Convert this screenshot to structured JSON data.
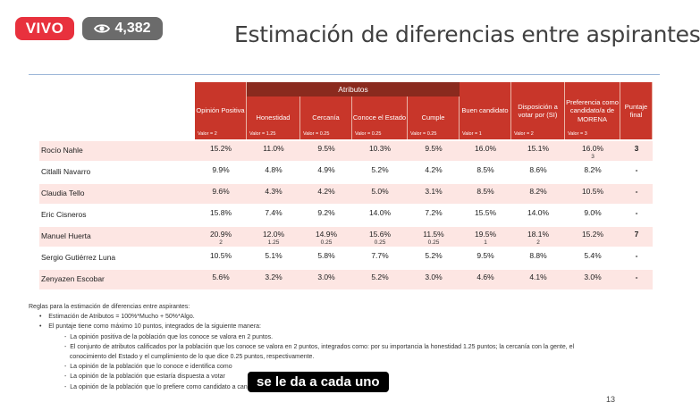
{
  "live": {
    "label": "VIVO"
  },
  "viewers": {
    "count": "4,382",
    "icon": "eye-icon"
  },
  "slide": {
    "title": "Estimación de diferencias entre aspirantes",
    "page_number": "13"
  },
  "table": {
    "columns": [
      {
        "label": "Opinión Positiva",
        "valor": "Valor = 2"
      },
      {
        "label": "Honestidad",
        "valor": "Valor = 1.25"
      },
      {
        "label": "Cercanía",
        "valor": "Valor = 0.25"
      },
      {
        "label": "Conoce el Estado",
        "valor": "Valor = 0.25"
      },
      {
        "label": "Cumple",
        "valor": "Valor = 0.25"
      },
      {
        "label": "Buen candidato",
        "valor": "Valor = 1"
      },
      {
        "label": "Disposición a votar por (SI)",
        "valor": "Valor = 2"
      },
      {
        "label": "Preferencia como candidato/a de MORENA",
        "valor": "Valor = 3"
      },
      {
        "label": "Puntaje final",
        "valor": ""
      }
    ],
    "group_header": "Atributos",
    "rows": [
      {
        "name": "Rocío Nahle",
        "values": [
          "15.2%",
          "11.0%",
          "9.5%",
          "10.3%",
          "9.5%",
          "16.0%",
          "15.1%",
          "16.0%"
        ],
        "subs": [
          "",
          "",
          "",
          "",
          "",
          "",
          "",
          "3"
        ],
        "final": "3"
      },
      {
        "name": "Citlalli Navarro",
        "values": [
          "9.9%",
          "4.8%",
          "4.9%",
          "5.2%",
          "4.2%",
          "8.5%",
          "8.6%",
          "8.2%"
        ],
        "subs": [
          "",
          "",
          "",
          "",
          "",
          "",
          "",
          ""
        ],
        "final": "-"
      },
      {
        "name": "Claudia Tello",
        "values": [
          "9.6%",
          "4.3%",
          "4.2%",
          "5.0%",
          "3.1%",
          "8.5%",
          "8.2%",
          "10.5%"
        ],
        "subs": [
          "",
          "",
          "",
          "",
          "",
          "",
          "",
          ""
        ],
        "final": "-"
      },
      {
        "name": "Eric Cisneros",
        "values": [
          "15.8%",
          "7.4%",
          "9.2%",
          "14.0%",
          "7.2%",
          "15.5%",
          "14.0%",
          "9.0%"
        ],
        "subs": [
          "",
          "",
          "",
          "",
          "",
          "",
          "",
          ""
        ],
        "final": "-"
      },
      {
        "name": "Manuel Huerta",
        "values": [
          "20.9%",
          "12.0%",
          "14.9%",
          "15.6%",
          "11.5%",
          "19.5%",
          "18.1%",
          "15.2%"
        ],
        "subs": [
          "2",
          "1.25",
          "0.25",
          "0.25",
          "0.25",
          "1",
          "2",
          ""
        ],
        "final": "7"
      },
      {
        "name": "Sergio Gutiérrez Luna",
        "values": [
          "10.5%",
          "5.1%",
          "5.8%",
          "7.7%",
          "5.2%",
          "9.5%",
          "8.8%",
          "5.4%"
        ],
        "subs": [
          "",
          "",
          "",
          "",
          "",
          "",
          "",
          ""
        ],
        "final": "-"
      },
      {
        "name": "Zenyazen Escobar",
        "values": [
          "5.6%",
          "3.2%",
          "3.0%",
          "5.2%",
          "3.0%",
          "4.6%",
          "4.1%",
          "3.0%"
        ],
        "subs": [
          "",
          "",
          "",
          "",
          "",
          "",
          "",
          ""
        ],
        "final": "-"
      }
    ]
  },
  "notes": {
    "heading": "Reglas para la estimación de diferencias entre aspirantes:",
    "bullet1": "Estimación de Atributos = 100%*Mucho + 50%*Algo.",
    "bullet2": "El puntaje tiene como máximo 10 puntos, integrados de la siguiente manera:",
    "items": [
      "La opinión positiva de la población que los conoce se valora en 2 puntos.",
      "El conjunto de atributos calificados por la población que los conoce se valora en 2 puntos, integrados como: por su importancia la honestidad 1.25 puntos; la cercanía con la gente, el",
      "conocimiento del Estado y el cumplimiento de lo que dice 0.25 puntos, respectivamente.",
      "La opinión de la población que lo conoce e identifica como",
      "La opinión de la población que estaría dispuesta a votar",
      "La opinión de la población que lo prefiere como candidato a candidata de MORENA, se valora en 3 puntos."
    ]
  },
  "caption": {
    "text": "se le da a cada uno"
  }
}
